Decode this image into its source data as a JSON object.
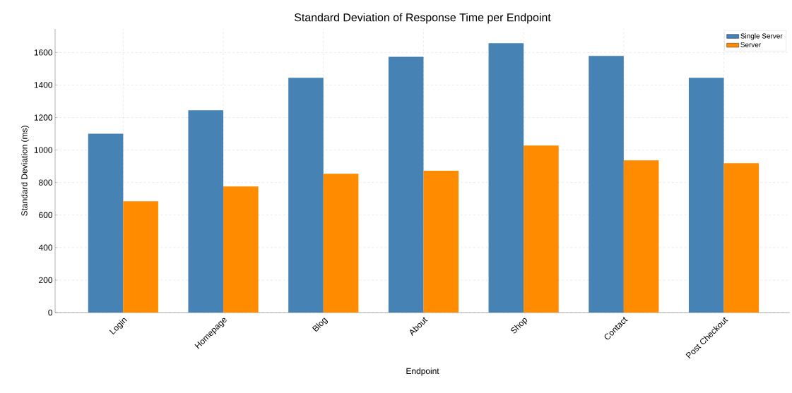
{
  "chart_data": {
    "type": "bar",
    "title": "Standard Deviation of Response Time per Endpoint",
    "xlabel": "Endpoint",
    "ylabel": "Standard Deviation (ms)",
    "categories": [
      "Login",
      "Homepage",
      "Blog",
      "About",
      "Shop",
      "Contact",
      "Post Checkout"
    ],
    "series": [
      {
        "name": "Single Server",
        "color": "#4682b4",
        "values": [
          1100,
          1245,
          1444,
          1574,
          1657,
          1579,
          1444
        ]
      },
      {
        "name": "Server",
        "color": "#ff8c00",
        "values": [
          685,
          776,
          854,
          872,
          1028,
          937,
          919
        ]
      }
    ],
    "ylim": [
      0,
      1745
    ],
    "yticks": [
      0,
      200,
      400,
      600,
      800,
      1000,
      1200,
      1400,
      1600
    ],
    "grid": true,
    "legend": "top right"
  }
}
